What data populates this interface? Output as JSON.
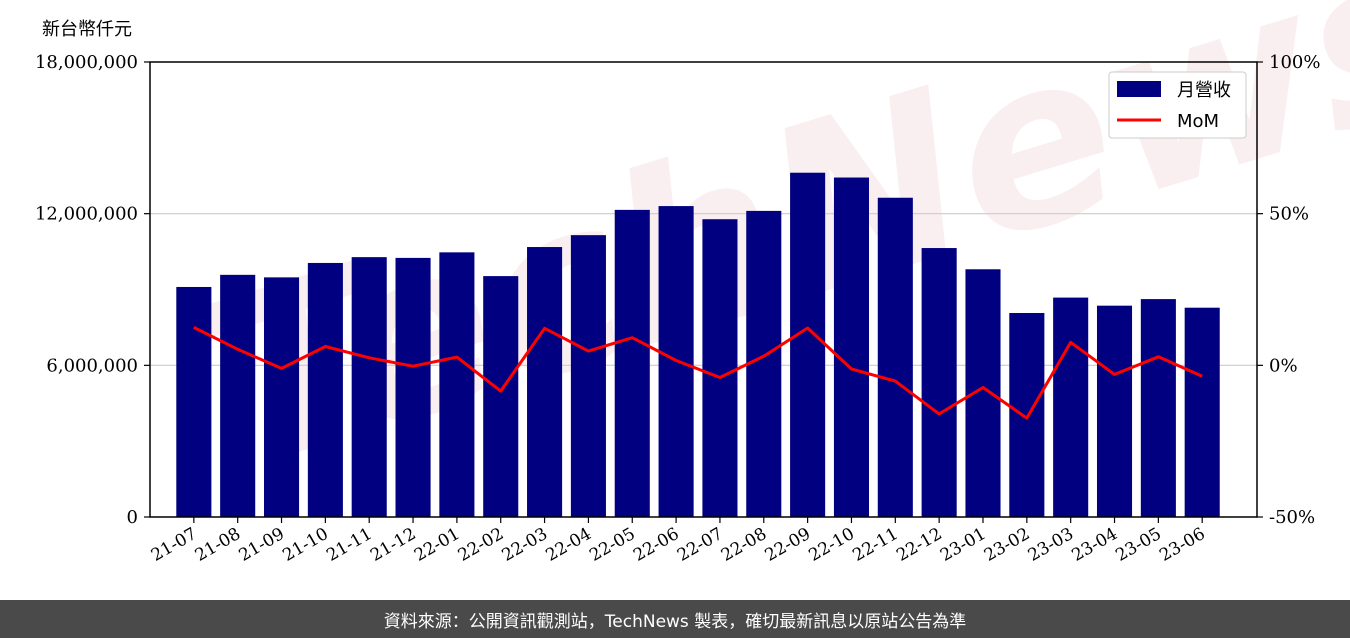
{
  "header": {
    "unit_label": "新台幣仟元"
  },
  "footer": {
    "source_text": "資料來源：公開資訊觀測站，TechNews 製表，確切最新訊息以原站公告為準"
  },
  "watermark": {
    "text": "TechNews"
  },
  "colors": {
    "bar": "#000080",
    "line": "#ff0000",
    "grid": "#cccccc"
  },
  "chart_data": {
    "type": "bar",
    "categories": [
      "21-07",
      "21-08",
      "21-09",
      "21-10",
      "21-11",
      "21-12",
      "22-01",
      "22-02",
      "22-03",
      "22-04",
      "22-05",
      "22-06",
      "22-07",
      "22-08",
      "22-09",
      "22-10",
      "22-11",
      "22-12",
      "23-01",
      "23-02",
      "23-03",
      "23-04",
      "23-05",
      "23-06"
    ],
    "series": [
      {
        "name": "月營收",
        "type": "bar",
        "axis": "left",
        "values": [
          9100000,
          9580000,
          9480000,
          10050000,
          10280000,
          10250000,
          10470000,
          9530000,
          10680000,
          11150000,
          12150000,
          12300000,
          11780000,
          12110000,
          13620000,
          13430000,
          12630000,
          10640000,
          9800000,
          8070000,
          8680000,
          8360000,
          8620000,
          8280000
        ]
      },
      {
        "name": "MoM",
        "type": "line",
        "axis": "right",
        "values": [
          12.5,
          5.3,
          -1.0,
          6.2,
          2.5,
          -0.3,
          2.7,
          -8.5,
          12.2,
          4.7,
          9.1,
          1.6,
          -4.0,
          3.0,
          12.3,
          -1.2,
          -5.2,
          -16.0,
          -7.3,
          -17.4,
          7.6,
          -3.0,
          2.8,
          -3.6
        ]
      }
    ],
    "y_left": {
      "ylim": [
        0,
        18000000
      ],
      "ticks": [
        0,
        6000000,
        12000000,
        18000000
      ],
      "tick_labels": [
        "0",
        "6,000,000",
        "12,000,000",
        "18,000,000"
      ]
    },
    "y_right": {
      "ylim": [
        -50,
        100
      ],
      "ticks": [
        -50,
        0,
        50,
        100
      ],
      "tick_labels": [
        "-50%",
        "0%",
        "50%",
        "100%"
      ]
    },
    "grid": "horizontal",
    "legend_position": "top-right"
  }
}
